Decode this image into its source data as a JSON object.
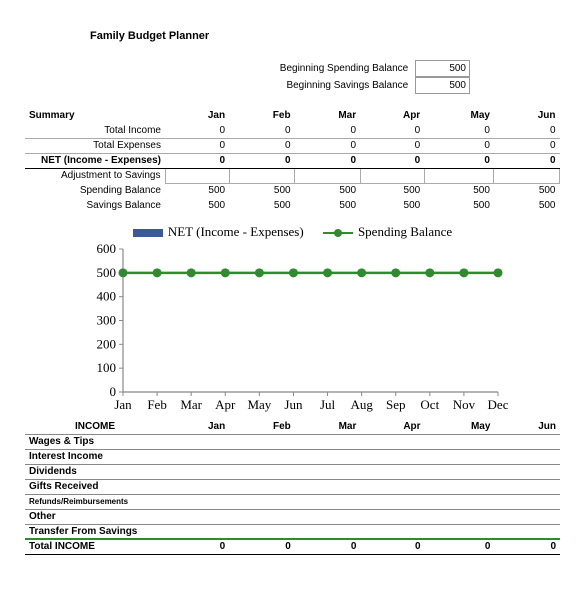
{
  "title": "Family Budget Planner",
  "balances": {
    "spending_label": "Beginning Spending Balance",
    "spending_value": "500",
    "savings_label": "Beginning Savings Balance",
    "savings_value": "500"
  },
  "months": [
    "Jan",
    "Feb",
    "Mar",
    "Apr",
    "May",
    "Jun"
  ],
  "summary": {
    "header": "Summary",
    "rows": [
      {
        "label": "Total Income",
        "vals": [
          "0",
          "0",
          "0",
          "0",
          "0",
          "0"
        ],
        "cls": "bordered"
      },
      {
        "label": "Total Expenses",
        "vals": [
          "0",
          "0",
          "0",
          "0",
          "0",
          "0"
        ],
        "cls": "bordered"
      }
    ],
    "net": {
      "label": "NET (Income - Expenses)",
      "vals": [
        "0",
        "0",
        "0",
        "0",
        "0",
        "0"
      ]
    },
    "adj": {
      "label": "Adjustment to Savings",
      "vals": [
        "",
        "",
        "",
        "",
        "",
        ""
      ]
    },
    "tail": [
      {
        "label": "Spending Balance",
        "vals": [
          "500",
          "500",
          "500",
          "500",
          "500",
          "500"
        ]
      },
      {
        "label": "Savings Balance",
        "vals": [
          "500",
          "500",
          "500",
          "500",
          "500",
          "500"
        ]
      }
    ]
  },
  "chart": {
    "legend": {
      "net": "NET (Income - Expenses)",
      "spend": "Spending Balance"
    },
    "months": [
      "Jan",
      "Feb",
      "Mar",
      "Apr",
      "May",
      "Jun",
      "Jul",
      "Aug",
      "Sep",
      "Oct",
      "Nov",
      "Dec"
    ],
    "ylim": [
      0,
      600
    ],
    "ytick_step": 100,
    "series": {
      "spending": {
        "color": "#2e8b2e",
        "values": [
          500,
          500,
          500,
          500,
          500,
          500,
          500,
          500,
          500,
          500,
          500,
          500
        ],
        "marker": "circle",
        "line_width": 2.5
      },
      "net": {
        "color": "#3b5998",
        "values": [
          0,
          0,
          0,
          0,
          0,
          0,
          0,
          0,
          0,
          0,
          0,
          0
        ]
      }
    },
    "axis_color": "#888",
    "label_font": "Georgia, serif",
    "label_fontsize": 13
  },
  "income": {
    "header": "INCOME",
    "months": [
      "Jan",
      "Feb",
      "Mar",
      "Apr",
      "May",
      "Jun"
    ],
    "rows": [
      {
        "label": "Wages & Tips"
      },
      {
        "label": "Interest Income"
      },
      {
        "label": "Dividends"
      },
      {
        "label": "Gifts Received"
      },
      {
        "label": "Refunds/Reimbursements",
        "cls": "refunds"
      },
      {
        "label": "Other"
      },
      {
        "label": "Transfer From Savings"
      }
    ],
    "total": {
      "label": "Total INCOME",
      "vals": [
        "0",
        "0",
        "0",
        "0",
        "0",
        "0"
      ]
    }
  }
}
